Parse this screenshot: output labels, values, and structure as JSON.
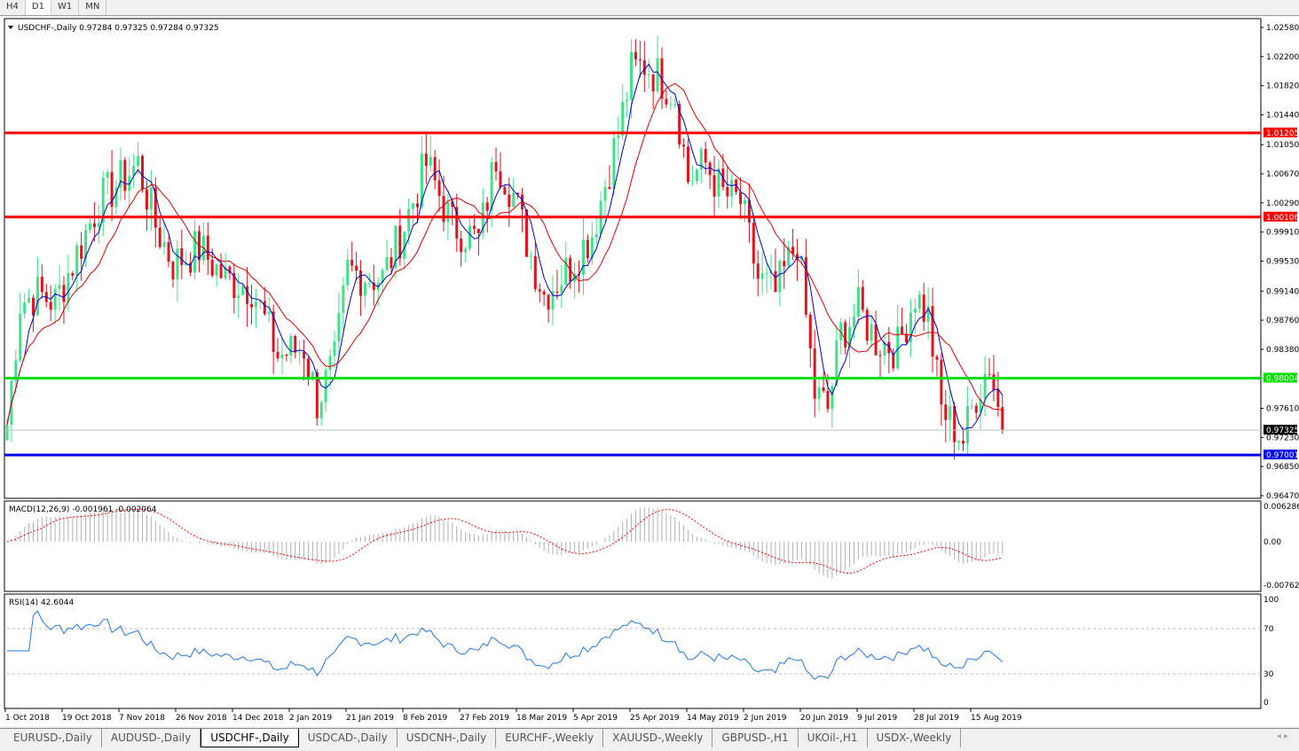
{
  "timeframes": [
    {
      "label": "H4"
    },
    {
      "label": "D1",
      "active": true
    },
    {
      "label": "W1"
    },
    {
      "label": "MN"
    }
  ],
  "chart": {
    "header": "USDCHF-,Daily  0.97284 0.97325 0.97284 0.97325",
    "price_ticks": [
      "1.02580",
      "1.02200",
      "1.01820",
      "1.01440",
      "1.01050",
      "1.00670",
      "1.00290",
      "0.99910",
      "0.99530",
      "0.99140",
      "0.98760",
      "0.98380",
      "0.97610",
      "0.97230",
      "0.96850",
      "0.96470"
    ],
    "hlines": [
      {
        "price": 1.01205,
        "label": "1.01205",
        "color": "#ff0000"
      },
      {
        "price": 1.00106,
        "label": "1.00106",
        "color": "#ff0000"
      },
      {
        "price": 0.98004,
        "label": "0.98004",
        "color": "#00e000"
      },
      {
        "price": 0.97001,
        "label": "0.97001",
        "color": "#0000ff"
      }
    ],
    "current_price": {
      "price": 0.97325,
      "label": "0.97325"
    },
    "colors": {
      "bull": "#3ee28a",
      "bear": "#e0141e",
      "ma_fast": "#0000cc",
      "ma_slow": "#e00000",
      "macd_hist": "#b0b0b0",
      "macd_signal": "#ff0000",
      "rsi": "#1e78e6"
    },
    "price_path": [
      [
        0,
        0.974
      ],
      [
        3,
        0.99
      ],
      [
        7,
        0.991
      ],
      [
        11,
        0.99
      ],
      [
        15,
        0.995
      ],
      [
        21,
        1.003
      ],
      [
        30,
        1.008
      ],
      [
        34,
        1.0
      ],
      [
        38,
        0.995
      ],
      [
        44,
        0.997
      ],
      [
        50,
        0.993
      ],
      [
        56,
        0.992
      ],
      [
        62,
        0.983
      ],
      [
        68,
        0.984
      ],
      [
        71,
        0.977
      ],
      [
        75,
        0.982
      ],
      [
        78,
        0.994
      ],
      [
        86,
        0.993
      ],
      [
        91,
        1.0
      ],
      [
        96,
        1.008
      ],
      [
        102,
        1.0
      ],
      [
        108,
        0.998
      ],
      [
        112,
        1.009
      ],
      [
        116,
        1.004
      ],
      [
        120,
        0.996
      ],
      [
        123,
        0.991
      ],
      [
        128,
        0.994
      ],
      [
        134,
        0.999
      ],
      [
        140,
        1.012
      ],
      [
        143,
        1.02
      ],
      [
        146,
        1.021
      ],
      [
        150,
        1.019
      ],
      [
        153,
        1.017
      ],
      [
        156,
        1.006
      ],
      [
        160,
        1.008
      ],
      [
        164,
        1.004
      ],
      [
        168,
        1.003
      ],
      [
        172,
        0.993
      ],
      [
        176,
        0.991
      ],
      [
        181,
        0.998
      ],
      [
        185,
        0.978
      ],
      [
        188,
        0.976
      ],
      [
        191,
        0.986
      ],
      [
        195,
        0.989
      ],
      [
        199,
        0.985
      ],
      [
        204,
        0.984
      ],
      [
        208,
        0.991
      ],
      [
        211,
        0.988
      ],
      [
        214,
        0.976
      ],
      [
        219,
        0.972
      ],
      [
        222,
        0.978
      ],
      [
        225,
        0.982
      ],
      [
        228,
        0.9733
      ]
    ]
  },
  "macd": {
    "label": "MACD(12,26,9) -0.001961 -0.002064",
    "ticks": [
      "0.006286",
      "0.00",
      "-0.00762"
    ]
  },
  "rsi": {
    "label": "RSI(14) 42.6044",
    "ticks": [
      "100",
      "70",
      "30",
      "0"
    ]
  },
  "time_labels": [
    "1 Oct 2018",
    "19 Oct 2018",
    "7 Nov 2018",
    "26 Nov 2018",
    "14 Dec 2018",
    "2 Jan 2019",
    "21 Jan 2019",
    "8 Feb 2019",
    "27 Feb 2019",
    "18 Mar 2019",
    "5 Apr 2019",
    "25 Apr 2019",
    "14 May 2019",
    "2 Jun 2019",
    "20 Jun 2019",
    "9 Jul 2019",
    "28 Jul 2019",
    "15 Aug 2019"
  ],
  "tabs": [
    {
      "label": "EURUSD-,Daily"
    },
    {
      "label": "AUDUSD-,Daily"
    },
    {
      "label": "USDCHF-,Daily",
      "active": true
    },
    {
      "label": "USDCAD-,Daily"
    },
    {
      "label": "USDCNH-,Daily"
    },
    {
      "label": "EURCHF-,Weekly"
    },
    {
      "label": "XAUUSD-,Weekly"
    },
    {
      "label": "GBPUSD-,H1"
    },
    {
      "label": "UKOil-,H1"
    },
    {
      "label": "USDX-,Weekly"
    }
  ]
}
